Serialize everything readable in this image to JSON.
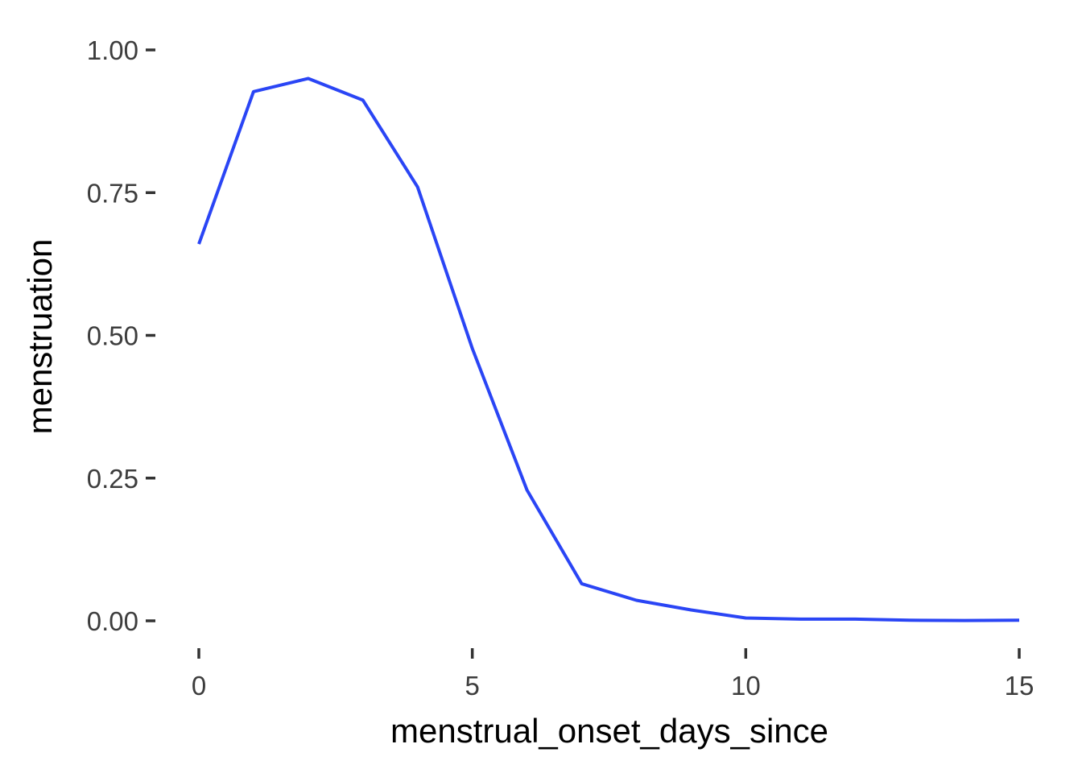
{
  "chart_data": {
    "type": "line",
    "title": "",
    "xlabel": "menstrual_onset_days_since",
    "ylabel": "menstruation",
    "xlim": [
      0,
      15
    ],
    "ylim": [
      0,
      1
    ],
    "xticks": [
      0,
      5,
      10,
      15
    ],
    "xtick_labels": [
      "0",
      "5",
      "10",
      "15"
    ],
    "yticks": [
      0,
      0.25,
      0.5,
      0.75,
      1
    ],
    "ytick_labels": [
      "0.00",
      "0.25",
      "0.50",
      "0.75",
      "1.00"
    ],
    "grid": false,
    "legend": "none",
    "series": [
      {
        "color": "#2a45f5",
        "x": [
          0,
          1,
          2,
          3,
          4,
          5,
          6,
          7,
          8,
          9,
          10,
          11,
          12,
          13,
          14,
          15
        ],
        "y": [
          0.66,
          0.927,
          0.95,
          0.912,
          0.76,
          0.477,
          0.229,
          0.065,
          0.036,
          0.019,
          0.005,
          0.003,
          0.003,
          0.001,
          0.0005,
          0.001
        ]
      }
    ]
  }
}
